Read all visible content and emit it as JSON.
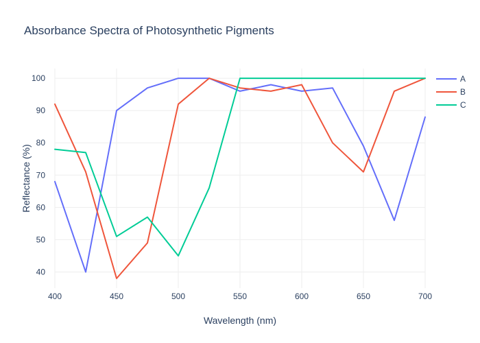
{
  "chart_data": {
    "type": "line",
    "title": "Absorbance Spectra of Photosynthetic Pigments",
    "xlabel": "Wavelength (nm)",
    "ylabel": "Reflectance (%)",
    "x": [
      400,
      425,
      450,
      475,
      500,
      525,
      550,
      575,
      600,
      625,
      650,
      675,
      700
    ],
    "xlim": [
      400,
      700
    ],
    "ylim": [
      35,
      103
    ],
    "xticks": [
      400,
      450,
      500,
      550,
      600,
      650,
      700
    ],
    "yticks": [
      40,
      50,
      60,
      70,
      80,
      90,
      100
    ],
    "grid": true,
    "legend_position": "top-right",
    "series": [
      {
        "name": "A",
        "color": "#636efa",
        "values": [
          68,
          40,
          90,
          97,
          100,
          100,
          96,
          98,
          96,
          97,
          79,
          56,
          88
        ]
      },
      {
        "name": "B",
        "color": "#ef553b",
        "values": [
          92,
          71,
          38,
          49,
          92,
          100,
          97,
          96,
          98,
          80,
          71,
          96,
          100
        ]
      },
      {
        "name": "C",
        "color": "#00cc96",
        "values": [
          78,
          77,
          51,
          57,
          45,
          66,
          100,
          100,
          100,
          100,
          100,
          100,
          100
        ]
      }
    ]
  }
}
